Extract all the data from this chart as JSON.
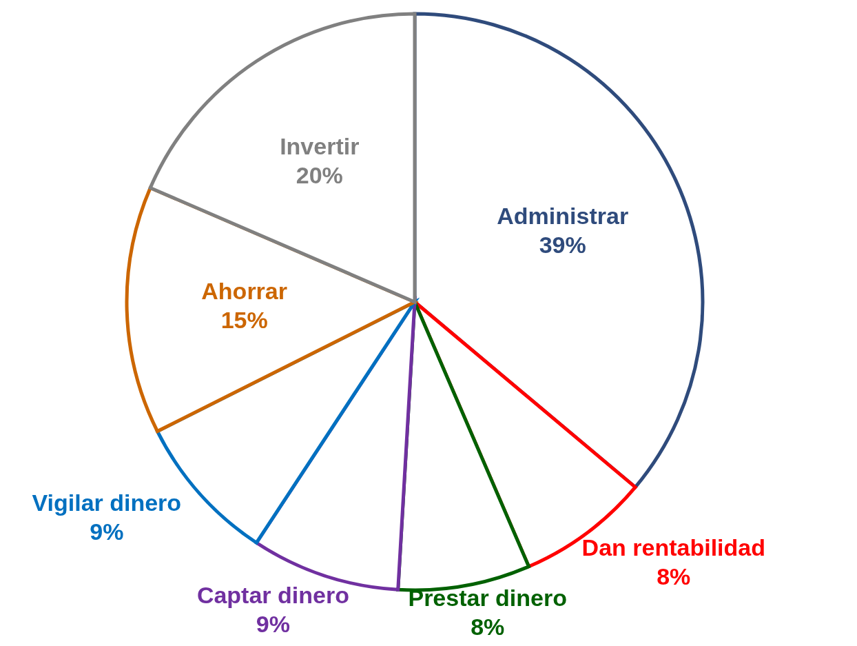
{
  "chart_data": {
    "type": "pie",
    "categories": [
      "Administrar",
      "Dan rentabilidad",
      "Prestar dinero",
      "Captar dinero",
      "Vigilar dinero",
      "Ahorrar",
      "Invertir"
    ],
    "values": [
      39,
      8,
      8,
      9,
      9,
      15,
      20
    ],
    "value_labels": [
      "39%",
      "8%",
      "8%",
      "9%",
      "9%",
      "15%",
      "20%"
    ],
    "colors": [
      "#2f4b7c",
      "#ff0000",
      "#006100",
      "#7030a0",
      "#0070c0",
      "#cc6600",
      "#808080"
    ]
  }
}
